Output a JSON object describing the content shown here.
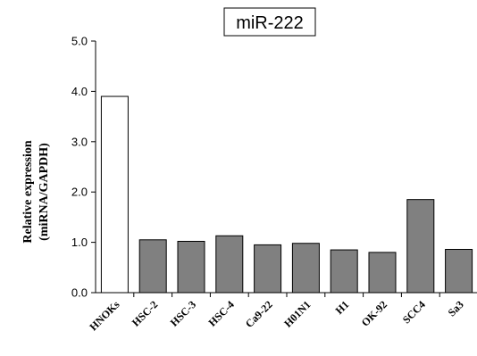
{
  "chart_data": {
    "type": "bar",
    "title": "miR-222",
    "xlabel": "",
    "ylabel_line1": "Relative expression",
    "ylabel_line2": "(miRNA/GAPDH)",
    "categories": [
      "HNOKs",
      "HSC-2",
      "HSC-3",
      "HSC-4",
      "Ca9-22",
      "H01N1",
      "H1",
      "OK-92",
      "SCC4",
      "Sa3"
    ],
    "values": [
      3.9,
      1.05,
      1.02,
      1.13,
      0.95,
      0.98,
      0.85,
      0.8,
      1.85,
      0.86
    ],
    "ylim": [
      0,
      5
    ],
    "yticks": [
      "0.0",
      "1.0",
      "2.0",
      "3.0",
      "4.0",
      "5.0"
    ],
    "grid": false,
    "colors": {
      "first_bar": "#ffffff",
      "other_bars": "#808080",
      "bar_stroke": "#000000"
    }
  }
}
